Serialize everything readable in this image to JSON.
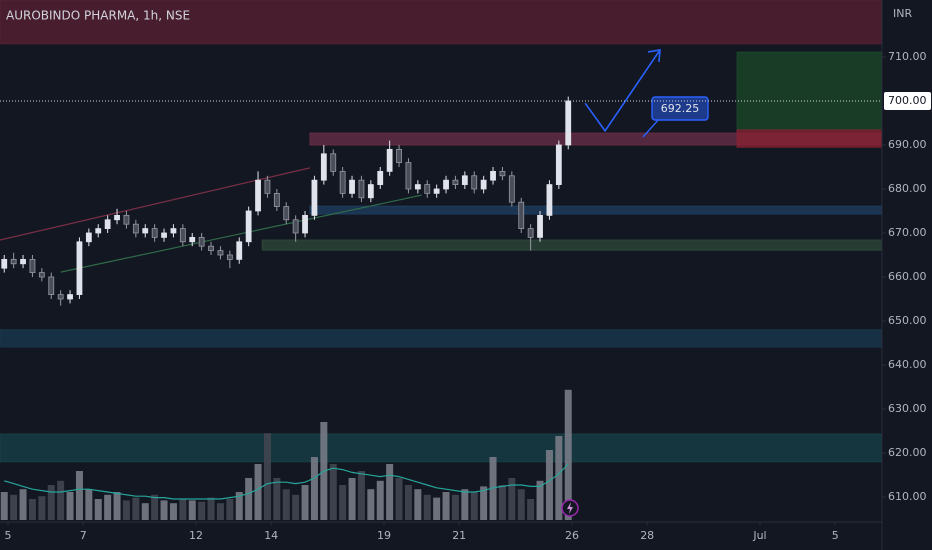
{
  "chart_data": {
    "type": "candlestick",
    "title": "AUROBINDO PHARMA, 1h, NSE",
    "currency": "INR",
    "up_color": "#e0e3eb",
    "down_color": "#4a4e5a",
    "ylim": [
      604.77,
      722.95
    ],
    "yticks": [
      {
        "value": 710,
        "label": "710.00"
      },
      {
        "value": 690,
        "label": "690.00"
      },
      {
        "value": 680,
        "label": "680.00"
      },
      {
        "value": 670,
        "label": "670.00"
      },
      {
        "value": 660,
        "label": "660.00"
      },
      {
        "value": 650,
        "label": "650.00"
      },
      {
        "value": 640,
        "label": "640.00"
      },
      {
        "value": 630,
        "label": "630.00"
      },
      {
        "value": 620,
        "label": "620.00"
      },
      {
        "value": 610,
        "label": "610.00"
      }
    ],
    "last_price": {
      "value": 700,
      "label": "700.00"
    },
    "xlim": [
      -0.213,
      23.245
    ],
    "xticks": [
      {
        "value": 0,
        "label": "5"
      },
      {
        "value": 2,
        "label": "7"
      },
      {
        "value": 5,
        "label": "12"
      },
      {
        "value": 7,
        "label": "14"
      },
      {
        "value": 10,
        "label": "19"
      },
      {
        "value": 12,
        "label": "21"
      },
      {
        "value": 15,
        "label": "26"
      },
      {
        "value": 17,
        "label": "28"
      },
      {
        "value": 20,
        "label": "Jul"
      },
      {
        "value": 22,
        "label": "5"
      }
    ],
    "x": [
      -0.1,
      0.15,
      0.4,
      0.65,
      0.9,
      1.15,
      1.4,
      1.65,
      1.9,
      2.15,
      2.4,
      2.65,
      2.9,
      3.15,
      3.4,
      3.65,
      3.9,
      4.15,
      4.4,
      4.65,
      4.9,
      5.15,
      5.4,
      5.65,
      5.9,
      6.15,
      6.4,
      6.65,
      6.9,
      7.15,
      7.4,
      7.65,
      7.9,
      8.15,
      8.4,
      8.65,
      8.9,
      9.15,
      9.4,
      9.65,
      9.9,
      10.15,
      10.4,
      10.65,
      10.9,
      11.15,
      11.4,
      11.65,
      11.9,
      12.15,
      12.4,
      12.65,
      12.9,
      13.15,
      13.4,
      13.65,
      13.9,
      14.15,
      14.4,
      14.65,
      14.9
    ],
    "open": [
      662,
      664,
      663,
      664,
      661,
      660,
      656,
      655,
      656,
      668,
      670,
      671,
      673,
      674,
      672,
      670,
      671,
      669,
      670,
      671,
      668,
      669,
      667,
      666,
      665,
      664,
      668,
      675,
      682,
      679,
      676,
      673,
      670,
      674,
      682,
      688,
      684,
      679,
      682,
      678,
      681,
      684,
      689,
      686,
      680,
      681,
      679,
      680,
      682,
      681,
      683,
      680,
      682,
      684,
      683,
      677,
      671,
      669,
      674,
      681,
      690
    ],
    "high": [
      665,
      665.5,
      665,
      665,
      662,
      661,
      657,
      657,
      669,
      671,
      672,
      674,
      675.5,
      675,
      673,
      672,
      672,
      671,
      672,
      672,
      670,
      670,
      668,
      667,
      666,
      669,
      676,
      684,
      683,
      680,
      677,
      674,
      675,
      683,
      690,
      689,
      685,
      683,
      683,
      682,
      685,
      691,
      690,
      687,
      682,
      682,
      681,
      683,
      683,
      684,
      684,
      683,
      685,
      685,
      684,
      678,
      672,
      675,
      682,
      691,
      701
    ],
    "low": [
      661,
      662,
      662,
      660,
      659,
      655,
      653.5,
      654,
      655,
      667,
      669,
      670,
      672,
      671,
      669,
      669,
      668,
      668,
      669,
      667,
      667,
      666,
      665,
      664,
      662,
      663,
      667,
      674,
      678,
      675,
      672,
      668,
      669,
      673,
      681,
      683,
      678,
      678,
      677,
      677,
      680,
      683,
      685,
      679,
      679,
      678,
      678,
      679,
      680,
      680,
      679,
      679,
      681,
      682,
      676,
      670,
      666,
      668,
      673,
      680,
      689
    ],
    "close": [
      664,
      663,
      664,
      661,
      660,
      656,
      655,
      656,
      668,
      670,
      671,
      673,
      674,
      672,
      670,
      671,
      669,
      670,
      671,
      668,
      669,
      667,
      666,
      665,
      664,
      668,
      675,
      682,
      679,
      676,
      673,
      670,
      674,
      682,
      688,
      684,
      679,
      682,
      678,
      681,
      684,
      689,
      686,
      680,
      681,
      679,
      680,
      682,
      681,
      683,
      680,
      682,
      684,
      683,
      677,
      671,
      669,
      674,
      681,
      690,
      700
    ],
    "vlim": [
      0,
      100
    ],
    "volume": [
      20,
      18,
      22,
      15,
      17,
      25,
      28,
      20,
      35,
      22,
      15,
      18,
      20,
      14,
      16,
      12,
      18,
      14,
      12,
      15,
      14,
      13,
      16,
      12,
      15,
      20,
      30,
      40,
      62,
      30,
      22,
      18,
      25,
      45,
      70,
      40,
      25,
      30,
      35,
      22,
      28,
      40,
      30,
      25,
      22,
      18,
      16,
      20,
      18,
      22,
      20,
      24,
      45,
      25,
      30,
      22,
      15,
      28,
      50,
      60,
      93
    ],
    "volume_ma": {
      "color": "#26a69a",
      "values": [
        28,
        26,
        24,
        22,
        21,
        20,
        20,
        21,
        22,
        22,
        21,
        20,
        19,
        18,
        17,
        17,
        16,
        16,
        15,
        15,
        15,
        15,
        15,
        15,
        16,
        17,
        19,
        22,
        26,
        27,
        27,
        26,
        27,
        30,
        35,
        37,
        36,
        34,
        33,
        32,
        31,
        32,
        31,
        29,
        27,
        25,
        23,
        22,
        21,
        20,
        20,
        21,
        23,
        24,
        25,
        25,
        24,
        24,
        28,
        33,
        40
      ]
    },
    "zones": [
      {
        "low": 713,
        "high": 722.95,
        "x0": -0.213,
        "x1": 23.245,
        "color": "#5b2233"
      },
      {
        "low": 690,
        "high": 692.7,
        "x0": 8.03,
        "x1": 23.245,
        "color": "#6b2f48"
      },
      {
        "low": 693.4,
        "high": 711.1,
        "x0": 19.39,
        "x1": 23.245,
        "color": "#1c4a2a"
      },
      {
        "low": 689.5,
        "high": 693.4,
        "x0": 19.39,
        "x1": 23.245,
        "color": "#8a2233"
      },
      {
        "low": 674.3,
        "high": 676.1,
        "x0": 8.03,
        "x1": 23.245,
        "color": "#1f3f63"
      },
      {
        "low": 666.1,
        "high": 668.4,
        "x0": 6.76,
        "x1": 23.245,
        "color": "#2f4a3a"
      },
      {
        "low": 644.1,
        "high": 648,
        "x0": -0.213,
        "x1": 23.245,
        "color": "#1b3a4f"
      },
      {
        "low": 618,
        "high": 624.3,
        "x0": -0.213,
        "x1": 23.245,
        "color": "#17424a"
      }
    ],
    "lines": [
      {
        "x": [
          -0.213,
          8.03
        ],
        "y": [
          668.4,
          684.8
        ],
        "color": "#7a2f45"
      },
      {
        "x": [
          1.4,
          11
        ],
        "y": [
          661.1,
          678.6
        ],
        "color": "#2f6b4a"
      },
      {
        "x": [
          15.35,
          15.88,
          17.34
        ],
        "y": [
          699.5,
          693.2,
          711.6
        ],
        "color": "#2962ff"
      }
    ],
    "annotation": "692.25"
  }
}
